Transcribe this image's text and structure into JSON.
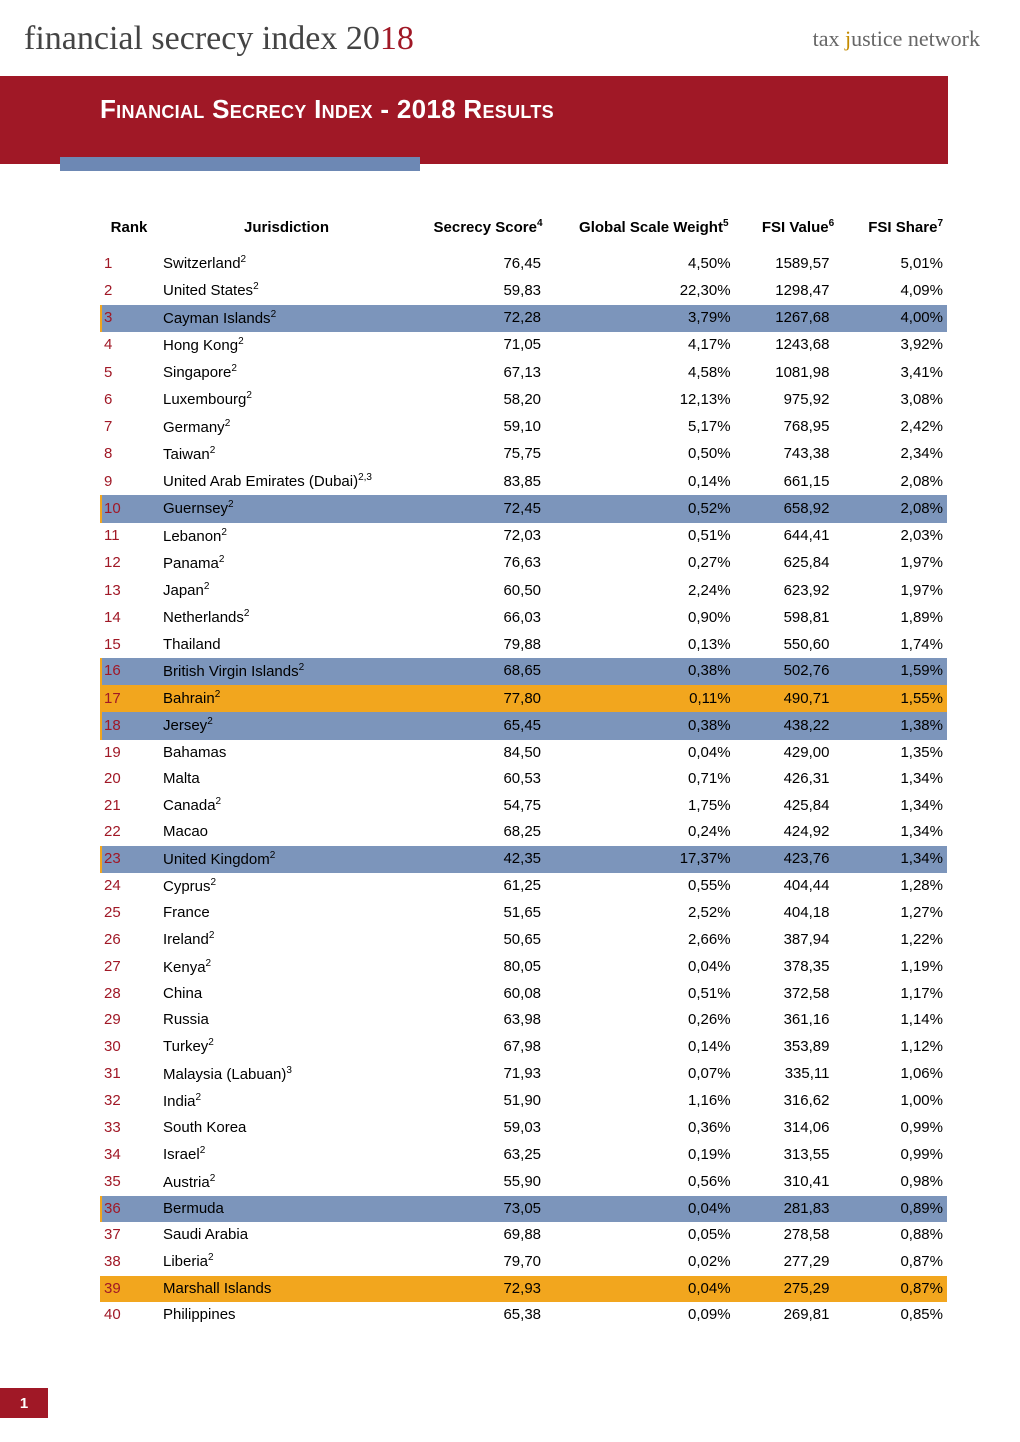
{
  "header": {
    "title_prefix": "financial secrecy index 20",
    "title_suffix": "18",
    "brand_word1": "tax ",
    "brand_accent": "j",
    "brand_word2": "ustice network"
  },
  "banner": {
    "title": "Financial Secrecy Index - 2018 Results"
  },
  "table": {
    "columns": {
      "rank": "Rank",
      "jurisdiction": "Jurisdiction",
      "secrecy_score": "Secrecy Score",
      "secrecy_score_sup": "4",
      "global_scale": "Global Scale Weight",
      "global_scale_sup": "5",
      "fsi_value": "FSI Value",
      "fsi_value_sup": "6",
      "fsi_share": "FSI Share",
      "fsi_share_sup": "7"
    },
    "rows": [
      {
        "rank": "1",
        "j": "Switzerland",
        "sup": "2",
        "score": "76,45",
        "weight": "4,50%",
        "value": "1589,57",
        "share": "5,01%",
        "hl": ""
      },
      {
        "rank": "2",
        "j": "United States",
        "sup": "2",
        "score": "59,83",
        "weight": "22,30%",
        "value": "1298,47",
        "share": "4,09%",
        "hl": ""
      },
      {
        "rank": "3",
        "j": "Cayman Islands",
        "sup": "2",
        "score": "72,28",
        "weight": "3,79%",
        "value": "1267,68",
        "share": "4,00%",
        "hl": "blue"
      },
      {
        "rank": "4",
        "j": "Hong Kong",
        "sup": "2",
        "score": "71,05",
        "weight": "4,17%",
        "value": "1243,68",
        "share": "3,92%",
        "hl": ""
      },
      {
        "rank": "5",
        "j": "Singapore",
        "sup": "2",
        "score": "67,13",
        "weight": "4,58%",
        "value": "1081,98",
        "share": "3,41%",
        "hl": ""
      },
      {
        "rank": "6",
        "j": "Luxembourg",
        "sup": "2",
        "score": "58,20",
        "weight": "12,13%",
        "value": "975,92",
        "share": "3,08%",
        "hl": ""
      },
      {
        "rank": "7",
        "j": "Germany",
        "sup": "2",
        "score": "59,10",
        "weight": "5,17%",
        "value": "768,95",
        "share": "2,42%",
        "hl": ""
      },
      {
        "rank": "8",
        "j": "Taiwan",
        "sup": "2",
        "score": "75,75",
        "weight": "0,50%",
        "value": "743,38",
        "share": "2,34%",
        "hl": ""
      },
      {
        "rank": "9",
        "j": "United Arab Emirates (Dubai)",
        "sup": "2,3",
        "score": "83,85",
        "weight": "0,14%",
        "value": "661,15",
        "share": "2,08%",
        "hl": ""
      },
      {
        "rank": "10",
        "j": "Guernsey",
        "sup": "2",
        "score": "72,45",
        "weight": "0,52%",
        "value": "658,92",
        "share": "2,08%",
        "hl": "blue"
      },
      {
        "rank": "11",
        "j": "Lebanon",
        "sup": "2",
        "score": "72,03",
        "weight": "0,51%",
        "value": "644,41",
        "share": "2,03%",
        "hl": ""
      },
      {
        "rank": "12",
        "j": "Panama",
        "sup": "2",
        "score": "76,63",
        "weight": "0,27%",
        "value": "625,84",
        "share": "1,97%",
        "hl": ""
      },
      {
        "rank": "13",
        "j": "Japan",
        "sup": "2",
        "score": "60,50",
        "weight": "2,24%",
        "value": "623,92",
        "share": "1,97%",
        "hl": ""
      },
      {
        "rank": "14",
        "j": "Netherlands",
        "sup": "2",
        "score": "66,03",
        "weight": "0,90%",
        "value": "598,81",
        "share": "1,89%",
        "hl": ""
      },
      {
        "rank": "15",
        "j": "Thailand",
        "sup": "",
        "score": "79,88",
        "weight": "0,13%",
        "value": "550,60",
        "share": "1,74%",
        "hl": ""
      },
      {
        "rank": "16",
        "j": "British Virgin Islands",
        "sup": "2",
        "score": "68,65",
        "weight": "0,38%",
        "value": "502,76",
        "share": "1,59%",
        "hl": "blue"
      },
      {
        "rank": "17",
        "j": "Bahrain",
        "sup": "2",
        "score": "77,80",
        "weight": "0,11%",
        "value": "490,71",
        "share": "1,55%",
        "hl": "gold"
      },
      {
        "rank": "18",
        "j": "Jersey",
        "sup": "2",
        "score": "65,45",
        "weight": "0,38%",
        "value": "438,22",
        "share": "1,38%",
        "hl": "blue"
      },
      {
        "rank": "19",
        "j": "Bahamas",
        "sup": "",
        "score": "84,50",
        "weight": "0,04%",
        "value": "429,00",
        "share": "1,35%",
        "hl": ""
      },
      {
        "rank": "20",
        "j": "Malta",
        "sup": "",
        "score": "60,53",
        "weight": "0,71%",
        "value": "426,31",
        "share": "1,34%",
        "hl": ""
      },
      {
        "rank": "21",
        "j": "Canada",
        "sup": "2",
        "score": "54,75",
        "weight": "1,75%",
        "value": "425,84",
        "share": "1,34%",
        "hl": ""
      },
      {
        "rank": "22",
        "j": "Macao",
        "sup": "",
        "score": "68,25",
        "weight": "0,24%",
        "value": "424,92",
        "share": "1,34%",
        "hl": ""
      },
      {
        "rank": "23",
        "j": "United Kingdom",
        "sup": "2",
        "score": "42,35",
        "weight": "17,37%",
        "value": "423,76",
        "share": "1,34%",
        "hl": "blue"
      },
      {
        "rank": "24",
        "j": "Cyprus",
        "sup": "2",
        "score": "61,25",
        "weight": "0,55%",
        "value": "404,44",
        "share": "1,28%",
        "hl": ""
      },
      {
        "rank": "25",
        "j": "France",
        "sup": "",
        "score": "51,65",
        "weight": "2,52%",
        "value": "404,18",
        "share": "1,27%",
        "hl": ""
      },
      {
        "rank": "26",
        "j": "Ireland",
        "sup": "2",
        "score": "50,65",
        "weight": "2,66%",
        "value": "387,94",
        "share": "1,22%",
        "hl": ""
      },
      {
        "rank": "27",
        "j": "Kenya",
        "sup": "2",
        "score": "80,05",
        "weight": "0,04%",
        "value": "378,35",
        "share": "1,19%",
        "hl": ""
      },
      {
        "rank": "28",
        "j": "China",
        "sup": "",
        "score": "60,08",
        "weight": "0,51%",
        "value": "372,58",
        "share": "1,17%",
        "hl": ""
      },
      {
        "rank": "29",
        "j": "Russia",
        "sup": "",
        "score": "63,98",
        "weight": "0,26%",
        "value": "361,16",
        "share": "1,14%",
        "hl": ""
      },
      {
        "rank": "30",
        "j": "Turkey",
        "sup": "2",
        "score": "67,98",
        "weight": "0,14%",
        "value": "353,89",
        "share": "1,12%",
        "hl": ""
      },
      {
        "rank": "31",
        "j": "Malaysia (Labuan)",
        "sup": "3",
        "score": "71,93",
        "weight": "0,07%",
        "value": "335,11",
        "share": "1,06%",
        "hl": ""
      },
      {
        "rank": "32",
        "j": "India",
        "sup": "2",
        "score": "51,90",
        "weight": "1,16%",
        "value": "316,62",
        "share": "1,00%",
        "hl": ""
      },
      {
        "rank": "33",
        "j": "South Korea",
        "sup": "",
        "score": "59,03",
        "weight": "0,36%",
        "value": "314,06",
        "share": "0,99%",
        "hl": ""
      },
      {
        "rank": "34",
        "j": "Israel",
        "sup": "2",
        "score": "63,25",
        "weight": "0,19%",
        "value": "313,55",
        "share": "0,99%",
        "hl": ""
      },
      {
        "rank": "35",
        "j": "Austria",
        "sup": "2",
        "score": "55,90",
        "weight": "0,56%",
        "value": "310,41",
        "share": "0,98%",
        "hl": ""
      },
      {
        "rank": "36",
        "j": "Bermuda",
        "sup": "",
        "score": "73,05",
        "weight": "0,04%",
        "value": "281,83",
        "share": "0,89%",
        "hl": "blue"
      },
      {
        "rank": "37",
        "j": "Saudi Arabia",
        "sup": "",
        "score": "69,88",
        "weight": "0,05%",
        "value": "278,58",
        "share": "0,88%",
        "hl": ""
      },
      {
        "rank": "38",
        "j": "Liberia",
        "sup": "2",
        "score": "79,70",
        "weight": "0,02%",
        "value": "277,29",
        "share": "0,87%",
        "hl": ""
      },
      {
        "rank": "39",
        "j": "Marshall Islands",
        "sup": "",
        "score": "72,93",
        "weight": "0,04%",
        "value": "275,29",
        "share": "0,87%",
        "hl": "gold"
      },
      {
        "rank": "40",
        "j": "Philippines",
        "sup": "",
        "score": "65,38",
        "weight": "0,09%",
        "value": "269,81",
        "share": "0,85%",
        "hl": ""
      }
    ]
  },
  "colors": {
    "brand_red": "#a01826",
    "highlight_blue": "#7c95bb",
    "highlight_gold": "#f2a61e",
    "banner_underline_blue": "#6d88b4"
  },
  "page_number": "1"
}
